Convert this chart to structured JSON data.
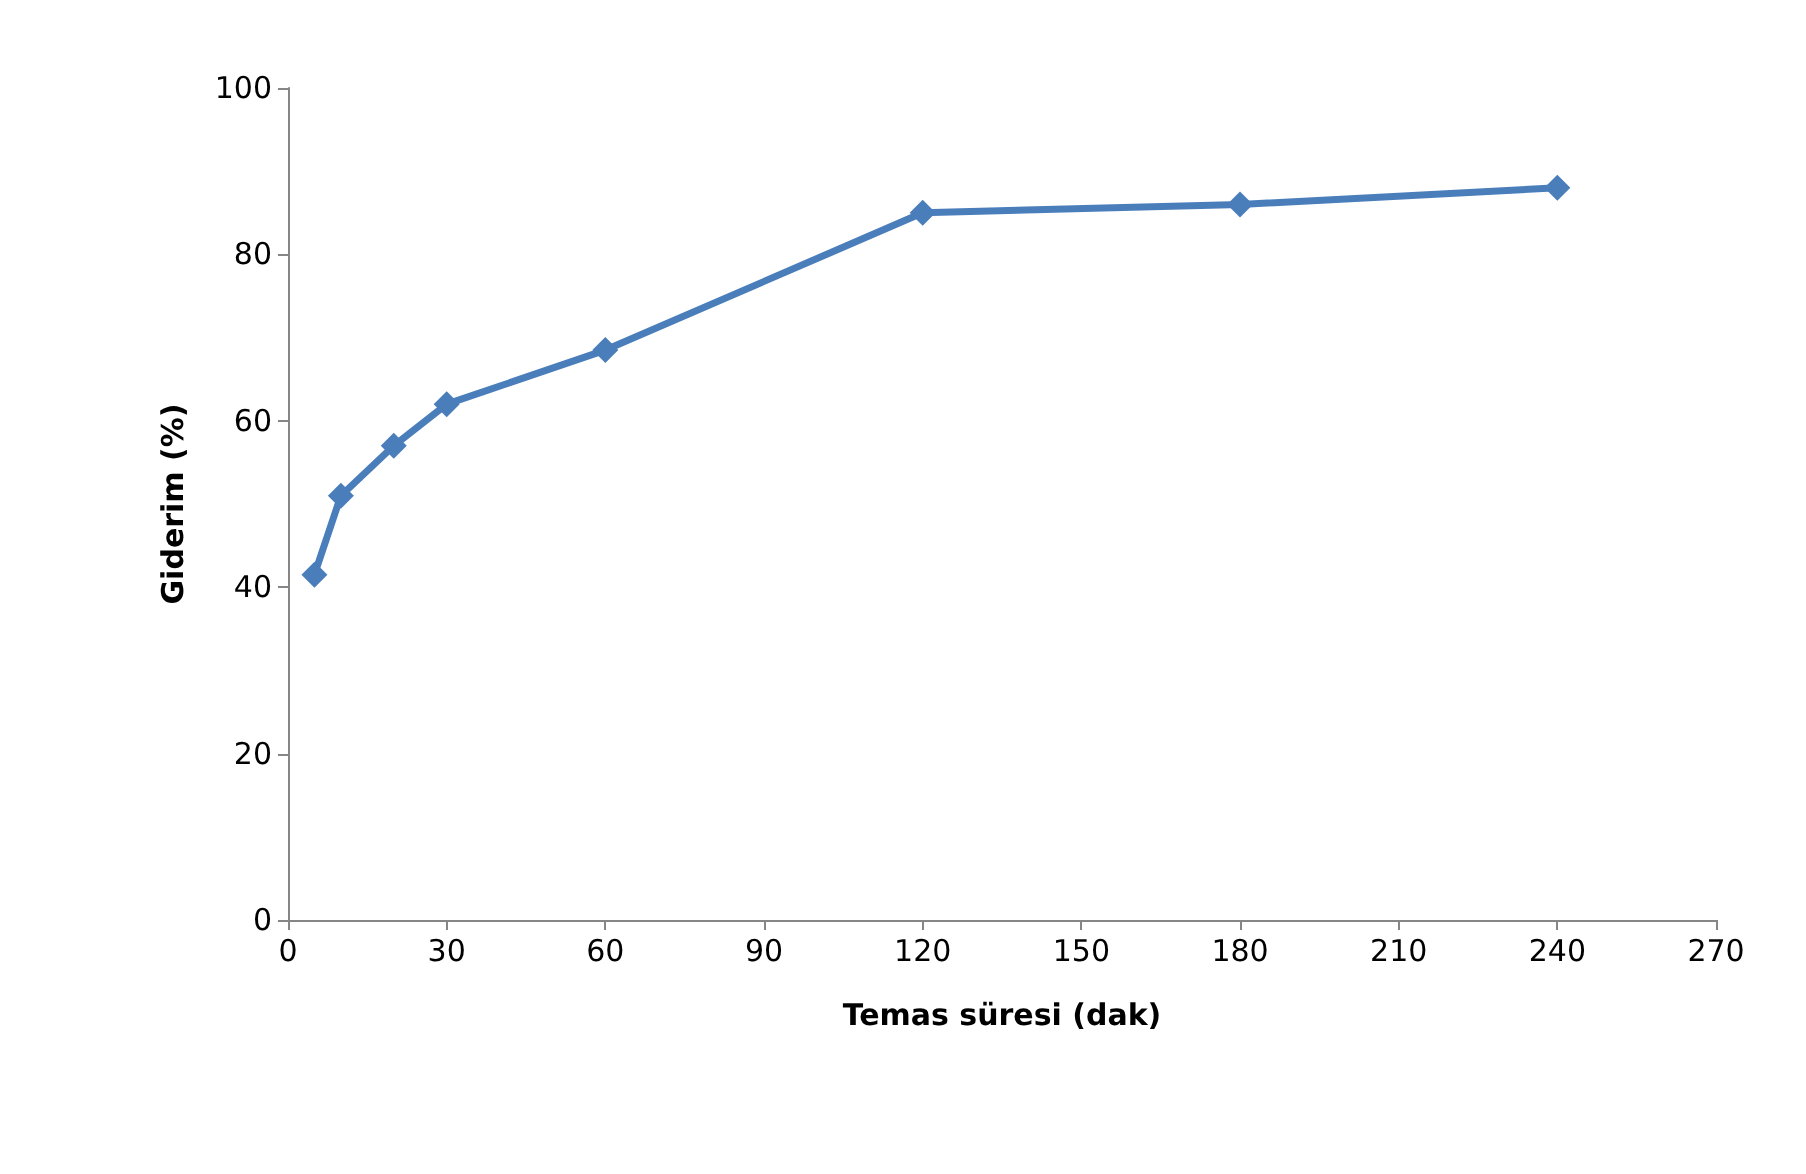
{
  "chart_data": {
    "type": "line",
    "xlabel": "Temas süresi (dak)",
    "ylabel": "Giderim (%)",
    "x": [
      5,
      10,
      20,
      30,
      60,
      120,
      180,
      240
    ],
    "series": [
      {
        "color": "#4a7ebb",
        "values": [
          41.5,
          51,
          57,
          62,
          68.5,
          85,
          86,
          88
        ]
      }
    ],
    "xlim": [
      0,
      270
    ],
    "xticks": [
      0,
      30,
      60,
      90,
      120,
      150,
      180,
      210,
      240,
      270
    ],
    "ylim": [
      0,
      100
    ],
    "yticks": [
      0,
      20,
      40,
      60,
      80,
      100
    ],
    "marker": "diamond"
  }
}
